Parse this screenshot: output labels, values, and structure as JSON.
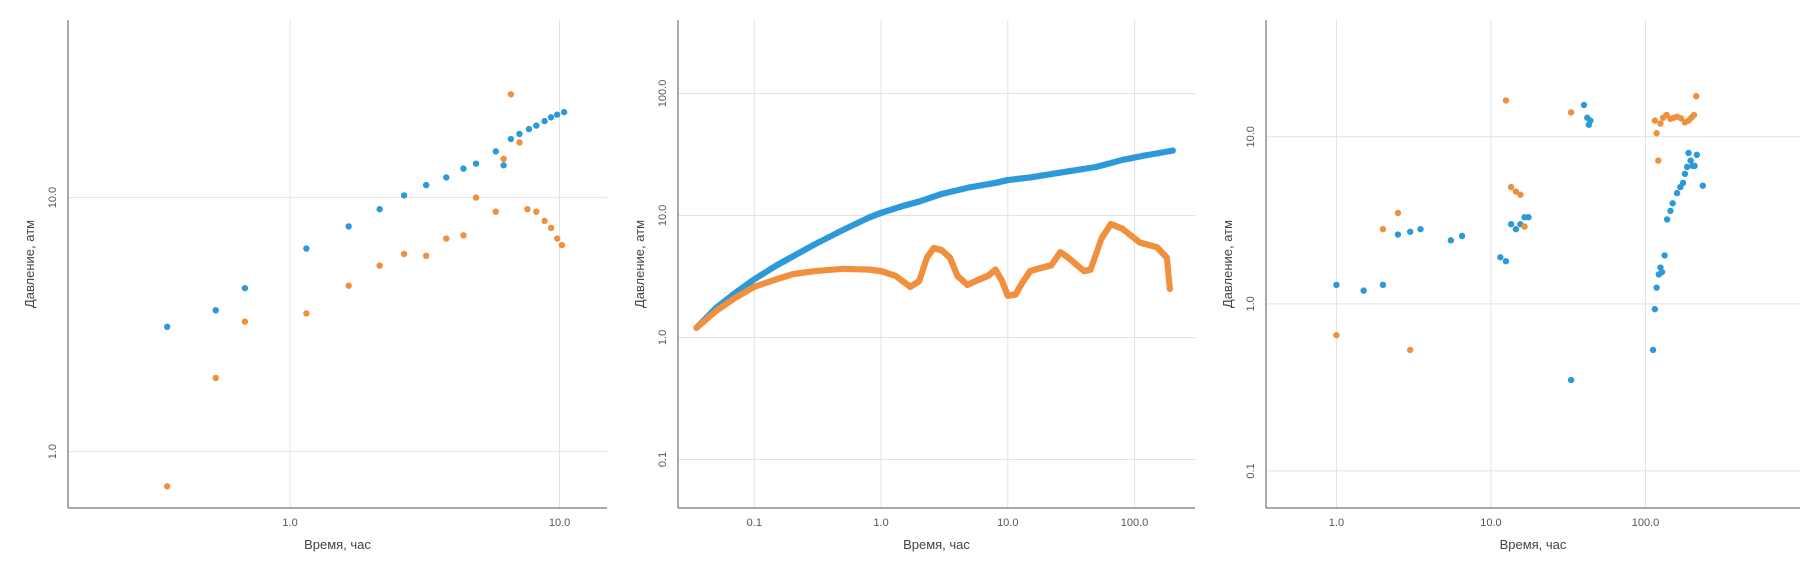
{
  "colors": {
    "series1": "#2c9ad8",
    "series2": "#f0903d"
  },
  "chart_data": [
    {
      "type": "scatter",
      "xscale": "log",
      "yscale": "log",
      "xlim": [
        0.15,
        15
      ],
      "ylim": [
        0.6,
        50
      ],
      "xticks": [
        "1.0",
        "10.0"
      ],
      "yticks": [
        "1.0",
        "10.0"
      ],
      "xlabel": "Время, час",
      "ylabel": "Давление, атм",
      "grid": true,
      "series": [
        {
          "color": "#2c9ad8",
          "points": [
            [
              0.35,
              3.1
            ],
            [
              0.53,
              3.6
            ],
            [
              0.68,
              4.4
            ],
            [
              1.15,
              6.3
            ],
            [
              1.65,
              7.7
            ],
            [
              2.15,
              9.0
            ],
            [
              2.65,
              10.2
            ],
            [
              3.2,
              11.2
            ],
            [
              3.8,
              12.0
            ],
            [
              4.4,
              13.0
            ],
            [
              4.9,
              13.6
            ],
            [
              5.8,
              15.2
            ],
            [
              6.2,
              13.4
            ],
            [
              6.6,
              17.0
            ],
            [
              7.1,
              17.8
            ],
            [
              7.7,
              18.6
            ],
            [
              8.2,
              19.2
            ],
            [
              8.8,
              20.0
            ],
            [
              9.3,
              20.7
            ],
            [
              9.8,
              21.2
            ],
            [
              10.4,
              21.7
            ]
          ]
        },
        {
          "color": "#f0903d",
          "points": [
            [
              0.35,
              0.73
            ],
            [
              0.53,
              1.95
            ],
            [
              0.68,
              3.25
            ],
            [
              1.15,
              3.5
            ],
            [
              1.65,
              4.5
            ],
            [
              2.15,
              5.4
            ],
            [
              2.65,
              6.0
            ],
            [
              3.2,
              5.9
            ],
            [
              3.8,
              6.9
            ],
            [
              4.4,
              7.1
            ],
            [
              4.9,
              10.0
            ],
            [
              5.8,
              8.8
            ],
            [
              6.2,
              14.2
            ],
            [
              6.6,
              25.5
            ],
            [
              7.1,
              16.5
            ],
            [
              7.6,
              9.0
            ],
            [
              8.2,
              8.8
            ],
            [
              8.8,
              8.1
            ],
            [
              9.3,
              7.6
            ],
            [
              9.8,
              6.9
            ],
            [
              10.2,
              6.5
            ]
          ]
        }
      ]
    },
    {
      "type": "scatter",
      "xscale": "log",
      "yscale": "log",
      "xlim": [
        0.025,
        300
      ],
      "ylim": [
        0.04,
        400
      ],
      "xticks": [
        "0.1",
        "1.0",
        "10.0",
        "100.0"
      ],
      "yticks": [
        "0.1",
        "1.0",
        "10.0",
        "100.0"
      ],
      "xlabel": "Время, час",
      "ylabel": "Давление, атм",
      "grid": true,
      "series": [
        {
          "color": "#2c9ad8",
          "curve": [
            [
              0.035,
              1.2
            ],
            [
              0.05,
              1.75
            ],
            [
              0.07,
              2.3
            ],
            [
              0.1,
              3.0
            ],
            [
              0.15,
              3.9
            ],
            [
              0.2,
              4.6
            ],
            [
              0.3,
              5.8
            ],
            [
              0.5,
              7.6
            ],
            [
              0.8,
              9.6
            ],
            [
              1.0,
              10.5
            ],
            [
              1.5,
              12.0
            ],
            [
              2.0,
              13.0
            ],
            [
              3.0,
              15.0
            ],
            [
              5.0,
              17.0
            ],
            [
              8.0,
              18.5
            ],
            [
              10.0,
              19.5
            ],
            [
              15.0,
              20.5
            ],
            [
              20.0,
              21.5
            ],
            [
              30.0,
              23.0
            ],
            [
              50.0,
              25.0
            ],
            [
              80.0,
              28.5
            ],
            [
              120.0,
              31.0
            ],
            [
              200.0,
              34.0
            ]
          ]
        },
        {
          "color": "#f0903d",
          "curve": [
            [
              0.035,
              1.2
            ],
            [
              0.05,
              1.65
            ],
            [
              0.07,
              2.1
            ],
            [
              0.1,
              2.6
            ],
            [
              0.15,
              3.0
            ],
            [
              0.2,
              3.3
            ],
            [
              0.3,
              3.5
            ],
            [
              0.5,
              3.65
            ],
            [
              0.8,
              3.6
            ],
            [
              1.0,
              3.5
            ],
            [
              1.3,
              3.2
            ],
            [
              1.7,
              2.6
            ],
            [
              2.0,
              2.9
            ],
            [
              2.3,
              4.5
            ],
            [
              2.6,
              5.4
            ],
            [
              3.0,
              5.2
            ],
            [
              3.5,
              4.5
            ],
            [
              4.0,
              3.2
            ],
            [
              4.8,
              2.7
            ],
            [
              6.0,
              3.0
            ],
            [
              7.0,
              3.2
            ],
            [
              8.0,
              3.6
            ],
            [
              9.0,
              2.9
            ],
            [
              10.0,
              2.2
            ],
            [
              11.5,
              2.25
            ],
            [
              13.0,
              2.8
            ],
            [
              15.0,
              3.5
            ],
            [
              18.0,
              3.7
            ],
            [
              22.0,
              3.9
            ],
            [
              26.0,
              5.0
            ],
            [
              30.0,
              4.5
            ],
            [
              40.0,
              3.5
            ],
            [
              45.0,
              3.6
            ],
            [
              55.0,
              6.5
            ],
            [
              65.0,
              8.5
            ],
            [
              80.0,
              7.8
            ],
            [
              110.0,
              6.0
            ],
            [
              150.0,
              5.5
            ],
            [
              180.0,
              4.5
            ],
            [
              190.0,
              2.5
            ]
          ]
        }
      ]
    },
    {
      "type": "scatter",
      "xscale": "log",
      "yscale": "log",
      "xlim": [
        0.35,
        1000
      ],
      "ylim": [
        0.06,
        50
      ],
      "xticks": [
        "1.0",
        "10.0",
        "100.0"
      ],
      "yticks": [
        "0.1",
        "1.0",
        "10.0"
      ],
      "xlabel": "Время, час",
      "ylabel": "Давление, атм",
      "grid": true,
      "series": [
        {
          "color": "#2c9ad8",
          "points": [
            [
              1.0,
              1.3
            ],
            [
              1.5,
              1.2
            ],
            [
              2.0,
              1.3
            ],
            [
              2.5,
              2.6
            ],
            [
              3.0,
              2.7
            ],
            [
              3.5,
              2.8
            ],
            [
              5.5,
              2.4
            ],
            [
              6.5,
              2.55
            ],
            [
              11.5,
              1.9
            ],
            [
              12.5,
              1.8
            ],
            [
              13.5,
              3.0
            ],
            [
              14.5,
              2.8
            ],
            [
              15.5,
              3.0
            ],
            [
              16.5,
              3.3
            ],
            [
              17.5,
              3.3
            ],
            [
              33.0,
              0.35
            ],
            [
              40.0,
              15.5
            ],
            [
              42.0,
              13.0
            ],
            [
              43.0,
              11.8
            ],
            [
              44.0,
              12.5
            ],
            [
              112.0,
              0.53
            ],
            [
              115.0,
              0.93
            ],
            [
              118.0,
              1.25
            ],
            [
              122.0,
              1.5
            ],
            [
              125.0,
              1.65
            ],
            [
              128.0,
              1.55
            ],
            [
              133.0,
              1.95
            ],
            [
              138.0,
              3.2
            ],
            [
              145.0,
              3.6
            ],
            [
              150.0,
              4.0
            ],
            [
              160.0,
              4.6
            ],
            [
              168.0,
              5.0
            ],
            [
              175.0,
              5.3
            ],
            [
              180.0,
              6.0
            ],
            [
              186.0,
              6.6
            ],
            [
              190.0,
              8.0
            ],
            [
              196.0,
              7.2
            ],
            [
              202.0,
              6.7
            ],
            [
              208.0,
              6.7
            ],
            [
              215.0,
              7.8
            ],
            [
              235.0,
              5.1
            ]
          ]
        },
        {
          "color": "#f0903d",
          "points": [
            [
              1.0,
              0.65
            ],
            [
              2.0,
              2.8
            ],
            [
              2.5,
              3.5
            ],
            [
              3.0,
              0.53
            ],
            [
              12.5,
              16.5
            ],
            [
              13.5,
              5.0
            ],
            [
              14.5,
              4.7
            ],
            [
              15.5,
              4.5
            ],
            [
              16.5,
              2.9
            ],
            [
              33.0,
              14.0
            ],
            [
              115.0,
              12.5
            ],
            [
              118.0,
              10.5
            ],
            [
              121.0,
              7.2
            ],
            [
              125.0,
              12.0
            ],
            [
              130.0,
              13.0
            ],
            [
              137.0,
              13.5
            ],
            [
              145.0,
              12.8
            ],
            [
              152.0,
              13.0
            ],
            [
              160.0,
              13.2
            ],
            [
              170.0,
              12.9
            ],
            [
              180.0,
              12.2
            ],
            [
              190.0,
              12.5
            ],
            [
              198.0,
              13.0
            ],
            [
              206.0,
              13.5
            ],
            [
              213.0,
              17.5
            ]
          ]
        }
      ]
    }
  ]
}
